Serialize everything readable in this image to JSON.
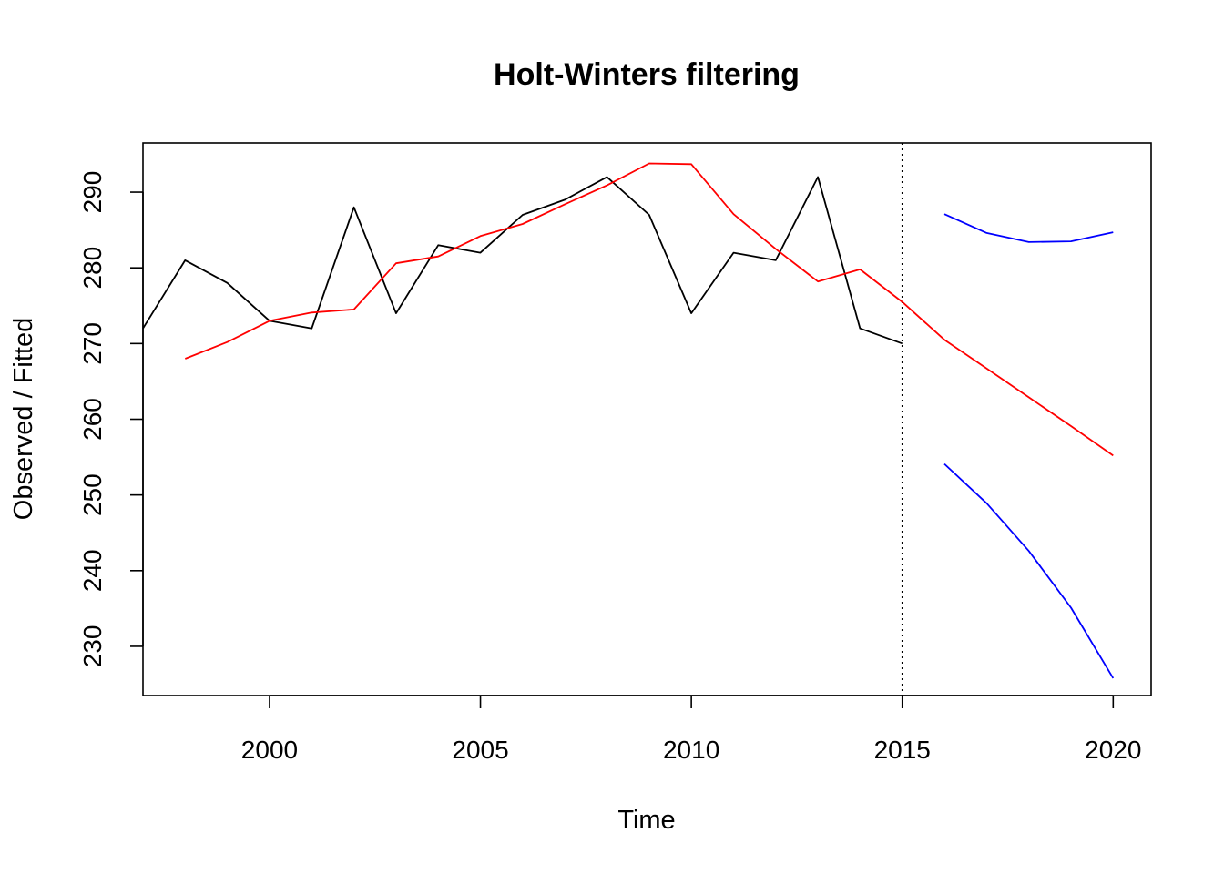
{
  "chart_data": {
    "type": "line",
    "title": "Holt-Winters filtering",
    "xlabel": "Time",
    "ylabel": "Observed / Fitted",
    "xlim": [
      1997,
      2020.9
    ],
    "ylim": [
      223.5,
      296.5
    ],
    "x_ticks": [
      2000,
      2005,
      2010,
      2015,
      2020
    ],
    "y_ticks": [
      230,
      240,
      250,
      260,
      270,
      280,
      290
    ],
    "forecast_start": 2015,
    "grid": false,
    "legend": "none",
    "series": [
      {
        "key": "observed",
        "color": "#000000",
        "x": [
          1997,
          1998,
          1999,
          2000,
          2001,
          2002,
          2003,
          2004,
          2005,
          2006,
          2007,
          2008,
          2009,
          2010,
          2011,
          2012,
          2013,
          2014,
          2015
        ],
        "values": [
          272,
          281,
          278,
          273,
          272,
          288,
          274,
          283,
          282,
          287,
          289,
          292,
          287,
          274,
          282,
          281,
          292,
          272,
          270
        ]
      },
      {
        "key": "fitted",
        "color": "#ff0000",
        "x": [
          1998,
          1999,
          2000,
          2001,
          2002,
          2003,
          2004,
          2005,
          2006,
          2007,
          2008,
          2009,
          2010,
          2011,
          2012,
          2013,
          2014,
          2015,
          2016,
          2017,
          2018,
          2019,
          2020
        ],
        "values": [
          268.0,
          270.2,
          273.0,
          274.1,
          274.5,
          280.6,
          281.5,
          284.2,
          285.8,
          288.4,
          290.9,
          293.8,
          293.7,
          287.1,
          282.5,
          278.2,
          279.8,
          275.5,
          270.5,
          266.7,
          262.9,
          259.1,
          255.2
        ]
      },
      {
        "key": "upper",
        "color": "#0000ff",
        "x": [
          2016,
          2017,
          2018,
          2019,
          2020
        ],
        "values": [
          287.1,
          284.6,
          283.4,
          283.5,
          284.7
        ]
      },
      {
        "key": "lower",
        "color": "#0000ff",
        "x": [
          2016,
          2017,
          2018,
          2019,
          2020
        ],
        "values": [
          254.1,
          248.9,
          242.6,
          235.1,
          225.8
        ]
      }
    ]
  }
}
